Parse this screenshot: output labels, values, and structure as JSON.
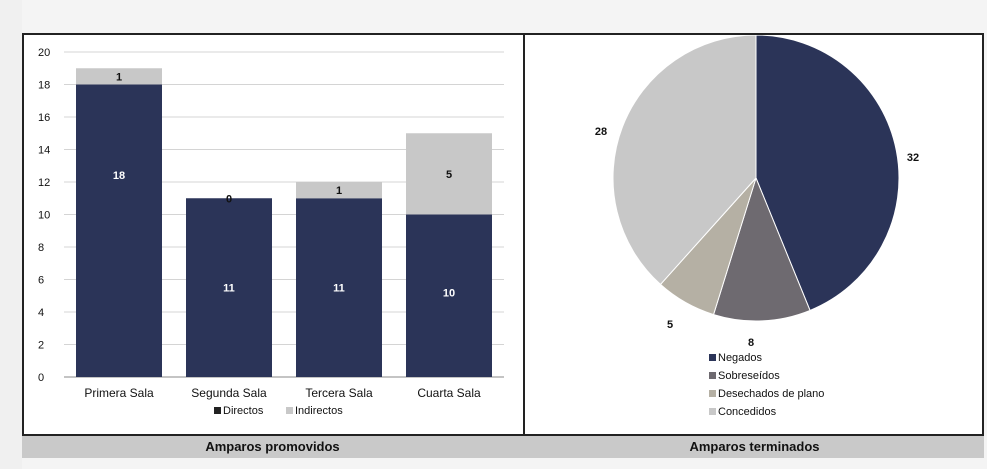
{
  "colors": {
    "directos": "#2b3458",
    "indirectos": "#c8c8c8",
    "negados": "#2b3458",
    "sobreseidos": "#6e6a70",
    "desechados": "#b5b0a4",
    "concedidos": "#c8c8c8"
  },
  "footer": {
    "left_label": "Amparos promovidos",
    "right_label": "Amparos terminados"
  },
  "chart_data": [
    {
      "type": "bar",
      "stacked": true,
      "categories": [
        "Primera Sala",
        "Segunda Sala",
        "Tercera Sala",
        "Cuarta Sala"
      ],
      "series": [
        {
          "name": "Directos",
          "values": [
            18,
            11,
            11,
            10
          ]
        },
        {
          "name": "Indirectos",
          "values": [
            1,
            0,
            1,
            5
          ]
        }
      ],
      "ylim": [
        0,
        20
      ],
      "yticks": [
        0,
        2,
        4,
        6,
        8,
        10,
        12,
        14,
        16,
        18,
        20
      ],
      "grid": true,
      "legend": "bottom"
    },
    {
      "type": "pie",
      "labels": [
        "Negados",
        "Sobreseídos",
        "Desechados de plano",
        "Concedidos"
      ],
      "values": [
        32,
        8,
        5,
        28
      ],
      "legend": "bottom"
    }
  ]
}
